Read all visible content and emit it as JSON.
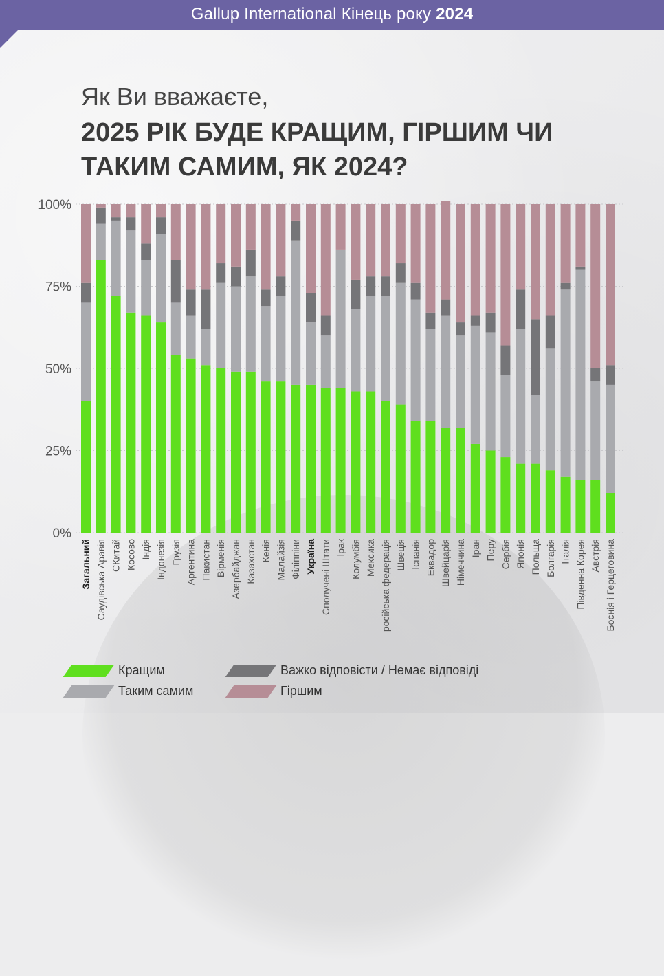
{
  "header": {
    "title_prefix": "Gallup International Кінець року",
    "year": "2024"
  },
  "question": {
    "line1": "Як Ви вважаєте,",
    "line2": "2025 РІК БУДЕ КРАЩИМ, ГІРШИМ ЧИ ТАКИМ САМИМ, ЯК 2024?"
  },
  "colors": {
    "better": "#5fdf1e",
    "same": "#a9aaae",
    "hard": "#757578",
    "worse": "#b68d96"
  },
  "legend": [
    {
      "key": "better",
      "label": "Кращим"
    },
    {
      "key": "hard",
      "label": "Важко відповісти / Немає відповіді"
    },
    {
      "key": "same",
      "label": "Таким самим"
    },
    {
      "key": "worse",
      "label": "Гіршим"
    }
  ],
  "chart_data": {
    "type": "bar",
    "stacked": true,
    "ylim": [
      0,
      100
    ],
    "yticks": [
      "0%",
      "25%",
      "50%",
      "75%",
      "100%"
    ],
    "grid": true,
    "categories": [
      "Загальний",
      "Саудівська Аравія",
      "СКитай",
      "Косово",
      "Індія",
      "Індонезія",
      "Грузія",
      "Аргентина",
      "Пакистан",
      "Вірменія",
      "Азербайджан",
      "Казахстан",
      "Кенія",
      "Малайзія",
      "Філіппіни",
      "Україна",
      "Сполучені Штати",
      "Ірак",
      "Колумбія",
      "Мексика",
      "російська федерація",
      "Швеція",
      "Іспанія",
      "Еквадор",
      "Швейцарія",
      "Німеччина",
      "Іран",
      "Перу",
      "Сербія",
      "Японія",
      "Польща",
      "Болгарія",
      "Італія",
      "Південна Корея",
      "Австрія",
      "Боснія і Герцеговина"
    ],
    "bold_categories": [
      "Загальний",
      "Україна"
    ],
    "series": [
      {
        "name": "Кращим",
        "key": "better",
        "values": [
          40,
          83,
          72,
          67,
          66,
          64,
          54,
          53,
          51,
          50,
          49,
          49,
          46,
          46,
          45,
          45,
          44,
          44,
          43,
          43,
          40,
          39,
          34,
          34,
          32,
          32,
          27,
          25,
          23,
          21,
          21,
          19,
          17,
          16,
          16,
          12
        ]
      },
      {
        "name": "Таким самим",
        "key": "same",
        "values": [
          30,
          11,
          23,
          25,
          17,
          27,
          16,
          13,
          11,
          26,
          26,
          29,
          23,
          26,
          44,
          19,
          16,
          42,
          25,
          29,
          32,
          37,
          37,
          28,
          34,
          28,
          36,
          36,
          25,
          41,
          21,
          37,
          57,
          64,
          30,
          33
        ]
      },
      {
        "name": "Важко відповісти / Немає відповіді",
        "key": "hard",
        "values": [
          6,
          5,
          1,
          4,
          5,
          5,
          13,
          8,
          12,
          6,
          6,
          8,
          5,
          6,
          6,
          9,
          6,
          0,
          9,
          6,
          6,
          6,
          5,
          5,
          5,
          4,
          3,
          6,
          9,
          12,
          23,
          10,
          2,
          1,
          4,
          6
        ]
      },
      {
        "name": "Гіршим",
        "key": "worse",
        "values": [
          24,
          1,
          4,
          4,
          12,
          4,
          17,
          26,
          26,
          18,
          19,
          14,
          26,
          22,
          5,
          27,
          34,
          14,
          23,
          22,
          22,
          18,
          24,
          33,
          30,
          36,
          34,
          33,
          43,
          26,
          35,
          34,
          24,
          19,
          50,
          49
        ]
      }
    ]
  }
}
